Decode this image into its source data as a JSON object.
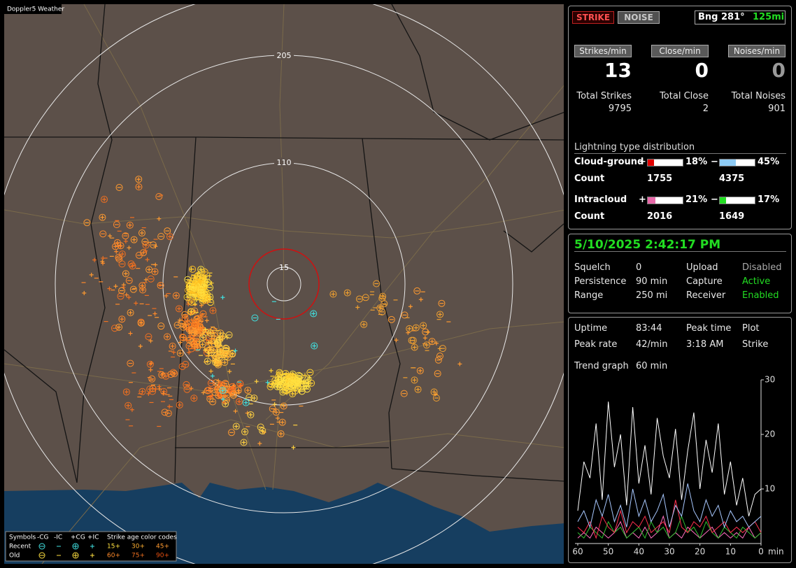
{
  "app_title": "Doppler5 Weather",
  "map": {
    "range_labels": [
      "205",
      "110",
      "15"
    ],
    "legend": {
      "symbols_title": "Symbols",
      "symbol_headers": [
        "-CG",
        "-IC",
        "+CG",
        "+IC"
      ],
      "age_title": "Strike age color codes",
      "rows": [
        {
          "label": "Recent",
          "ages": [
            "15+",
            "30+",
            "45+"
          ]
        },
        {
          "label": "Old",
          "ages": [
            "60+",
            "75+",
            "90+"
          ]
        }
      ]
    }
  },
  "controls": {
    "strike": "STRIKE",
    "noise": "NOISE",
    "bearing": "Bng 281°",
    "range": "125mi"
  },
  "rates": [
    {
      "header": "Strikes/min",
      "value": 13,
      "total_label": "Total Strikes",
      "total": 9795
    },
    {
      "header": "Close/min",
      "value": 0,
      "total_label": "Total Close",
      "total": 2
    },
    {
      "header": "Noises/min",
      "value": 0,
      "total_label": "Total Noises",
      "total": 901
    }
  ],
  "distribution": {
    "title": "Lightning type distribution",
    "rows": [
      {
        "label": "Cloud-ground",
        "count_label": "Count",
        "positive": {
          "sign": "+",
          "value": 18,
          "value_label": "18%",
          "count": 1755,
          "color": "#e00000"
        },
        "negative": {
          "sign": "−",
          "value": 45,
          "value_label": "45%",
          "count": 4375,
          "color": "#8ecbf5"
        }
      },
      {
        "label": "Intracloud",
        "count_label": "Count",
        "positive": {
          "sign": "+",
          "value": 21,
          "value_label": "21%",
          "count": 2016,
          "color": "#e868a8"
        },
        "negative": {
          "sign": "−",
          "value": 17,
          "value_label": "17%",
          "count": 1649,
          "color": "#22dd22"
        }
      }
    ]
  },
  "status": {
    "datetime": "5/10/2025 2:42:17 PM",
    "rows": [
      [
        "Squelch",
        "0",
        "Upload",
        "Disabled"
      ],
      [
        "Persistence",
        "90 min",
        "Capture",
        "Active"
      ],
      [
        "Range",
        "250 mi",
        "Receiver",
        "Enabled"
      ]
    ]
  },
  "stats": {
    "rows": [
      [
        "Uptime",
        "83:44",
        "Peak time",
        "Plot"
      ],
      [
        "Peak rate",
        "42/min",
        "3:18 AM",
        "Strike"
      ]
    ],
    "trend_label": "Trend graph",
    "trend_window": "60 min"
  },
  "chart_data": {
    "type": "line",
    "x": [
      60,
      58,
      56,
      54,
      52,
      50,
      48,
      46,
      44,
      42,
      40,
      38,
      36,
      34,
      32,
      30,
      28,
      26,
      24,
      22,
      20,
      18,
      16,
      14,
      12,
      10,
      8,
      6,
      4,
      2,
      0
    ],
    "xlim": [
      60,
      0
    ],
    "xticks": [
      60,
      50,
      40,
      30,
      20,
      10,
      0
    ],
    "xlabel": "min",
    "ylim": [
      0,
      30
    ],
    "yticks": [
      10,
      20,
      30
    ],
    "series": [
      {
        "color": "#ffffff",
        "values": [
          6,
          15,
          12,
          22,
          8,
          26,
          14,
          20,
          7,
          25,
          11,
          18,
          9,
          23,
          16,
          12,
          21,
          8,
          17,
          24,
          10,
          19,
          13,
          22,
          9,
          15,
          7,
          12,
          5,
          9,
          10
        ]
      },
      {
        "color": "#a8c8ff",
        "values": [
          4,
          6,
          3,
          8,
          5,
          9,
          4,
          7,
          3,
          10,
          5,
          8,
          4,
          6,
          9,
          3,
          7,
          5,
          11,
          6,
          4,
          8,
          5,
          7,
          3,
          6,
          4,
          5,
          3,
          4,
          5
        ]
      },
      {
        "color": "#ff3050",
        "values": [
          3,
          2,
          4,
          1,
          5,
          3,
          2,
          6,
          2,
          4,
          3,
          5,
          2,
          3,
          4,
          2,
          8,
          3,
          2,
          4,
          3,
          5,
          2,
          3,
          4,
          2,
          3,
          2,
          3,
          4,
          2
        ]
      },
      {
        "color": "#30c030",
        "values": [
          2,
          1,
          3,
          2,
          1,
          4,
          2,
          3,
          1,
          2,
          3,
          1,
          4,
          2,
          3,
          1,
          2,
          5,
          2,
          3,
          1,
          4,
          2,
          1,
          3,
          2,
          1,
          3,
          2,
          1,
          2
        ]
      },
      {
        "color": "#ff70c0",
        "values": [
          1,
          2,
          1,
          3,
          2,
          1,
          2,
          4,
          1,
          2,
          1,
          3,
          1,
          2,
          5,
          1,
          2,
          1,
          3,
          2,
          1,
          2,
          3,
          1,
          2,
          1,
          2,
          1,
          3,
          1,
          2
        ]
      }
    ]
  }
}
